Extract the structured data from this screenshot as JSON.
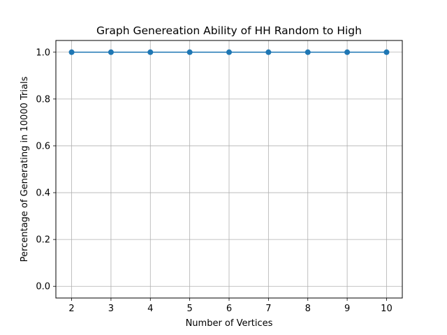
{
  "chart_data": {
    "type": "line",
    "title": "Graph Genereation Ability of HH Random to High",
    "xlabel": "Number of Vertices",
    "ylabel": "Percentage of Generating in 10000 Trials",
    "x": [
      2,
      3,
      4,
      5,
      6,
      7,
      8,
      9,
      10
    ],
    "series": [
      {
        "values": [
          1.0,
          1.0,
          1.0,
          1.0,
          1.0,
          1.0,
          1.0,
          1.0,
          1.0
        ]
      }
    ],
    "xlim": [
      1.6,
      10.4
    ],
    "ylim": [
      -0.05,
      1.05
    ],
    "xticks": [
      "2",
      "3",
      "4",
      "5",
      "6",
      "7",
      "8",
      "9",
      "10"
    ],
    "yticks": [
      "0.0",
      "0.2",
      "0.4",
      "0.6",
      "0.8",
      "1.0"
    ],
    "grid": true,
    "colors": {
      "line": "#1f77b4",
      "grid": "#b0b0b0",
      "axes": "#000000"
    },
    "marker": "circle"
  }
}
